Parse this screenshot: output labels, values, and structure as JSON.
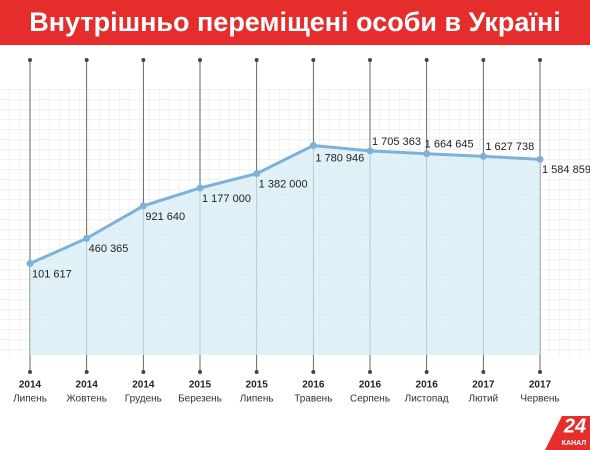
{
  "chart_data": {
    "type": "area",
    "title": "Внутрішньо переміщені особи в Україні",
    "categories": [
      "Липень",
      "Жовтень",
      "Грудень",
      "Березень",
      "Липень",
      "Травень",
      "Серпень",
      "Листопад",
      "Лютий",
      "Червень"
    ],
    "years": [
      "2014",
      "2014",
      "2014",
      "2015",
      "2015",
      "2016",
      "2016",
      "2016",
      "2017",
      "2017"
    ],
    "values": [
      101617,
      460365,
      921640,
      1177000,
      1382000,
      1780946,
      1705363,
      1664645,
      1627738,
      1584859
    ],
    "value_labels": [
      "101 617",
      "460 365",
      "921 640",
      "1 177 000",
      "1 382 000",
      "1 780 946",
      "1 705 363",
      "1 664 645",
      "1 627 738",
      "1 584 859"
    ],
    "color": "#7eb1d8",
    "ylim": [
      -1200000,
      2600000
    ],
    "grid": true
  },
  "logo": {
    "number": "24",
    "text": "КАНАЛ"
  }
}
